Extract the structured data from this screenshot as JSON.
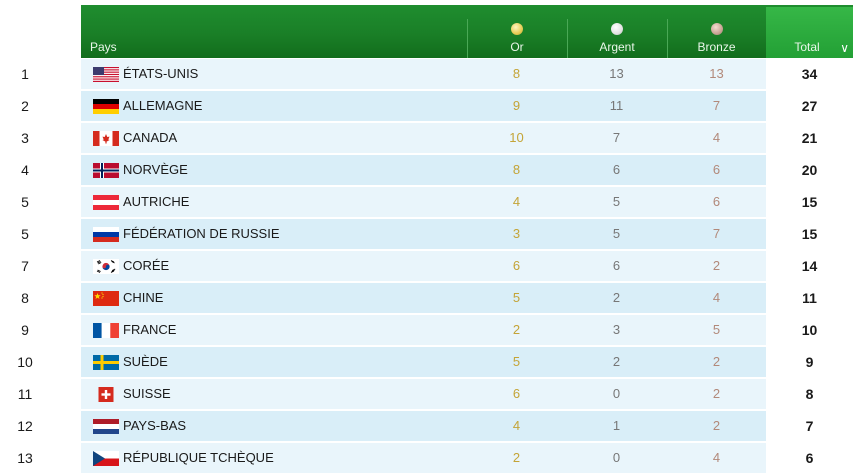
{
  "header": {
    "pays": "Pays",
    "or": "Or",
    "argent": "Argent",
    "bronze": "Bronze",
    "total": "Total",
    "sort_icon": "chevron-down-icon"
  },
  "rows": [
    {
      "rank": "1",
      "country": "ÉTATS-UNIS",
      "flag": "us",
      "gold": "8",
      "silver": "13",
      "bronze": "13",
      "total": "34"
    },
    {
      "rank": "2",
      "country": "ALLEMAGNE",
      "flag": "de",
      "gold": "9",
      "silver": "11",
      "bronze": "7",
      "total": "27"
    },
    {
      "rank": "3",
      "country": "CANADA",
      "flag": "ca",
      "gold": "10",
      "silver": "7",
      "bronze": "4",
      "total": "21"
    },
    {
      "rank": "4",
      "country": "NORVÈGE",
      "flag": "no",
      "gold": "8",
      "silver": "6",
      "bronze": "6",
      "total": "20"
    },
    {
      "rank": "5",
      "country": "AUTRICHE",
      "flag": "at",
      "gold": "4",
      "silver": "5",
      "bronze": "6",
      "total": "15"
    },
    {
      "rank": "5",
      "country": "FÉDÉRATION DE RUSSIE",
      "flag": "ru",
      "gold": "3",
      "silver": "5",
      "bronze": "7",
      "total": "15"
    },
    {
      "rank": "7",
      "country": "CORÉE",
      "flag": "kr",
      "gold": "6",
      "silver": "6",
      "bronze": "2",
      "total": "14"
    },
    {
      "rank": "8",
      "country": "CHINE",
      "flag": "cn",
      "gold": "5",
      "silver": "2",
      "bronze": "4",
      "total": "11"
    },
    {
      "rank": "9",
      "country": "FRANCE",
      "flag": "fr",
      "gold": "2",
      "silver": "3",
      "bronze": "5",
      "total": "10"
    },
    {
      "rank": "10",
      "country": "SUÈDE",
      "flag": "se",
      "gold": "5",
      "silver": "2",
      "bronze": "2",
      "total": "9"
    },
    {
      "rank": "11",
      "country": "SUISSE",
      "flag": "ch",
      "gold": "6",
      "silver": "0",
      "bronze": "2",
      "total": "8"
    },
    {
      "rank": "12",
      "country": "PAYS-BAS",
      "flag": "nl",
      "gold": "4",
      "silver": "1",
      "bronze": "2",
      "total": "7"
    },
    {
      "rank": "13",
      "country": "RÉPUBLIQUE TCHÈQUE",
      "flag": "cz",
      "gold": "2",
      "silver": "0",
      "bronze": "4",
      "total": "6"
    }
  ],
  "colors": {
    "header_green": "#1a7f27",
    "total_header_green": "#2aa83c",
    "row_light": "#e9f5fb",
    "row_alt": "#d9eef8",
    "gold_text": "#c4a437",
    "silver_text": "#777777",
    "bronze_text": "#b2897a"
  }
}
